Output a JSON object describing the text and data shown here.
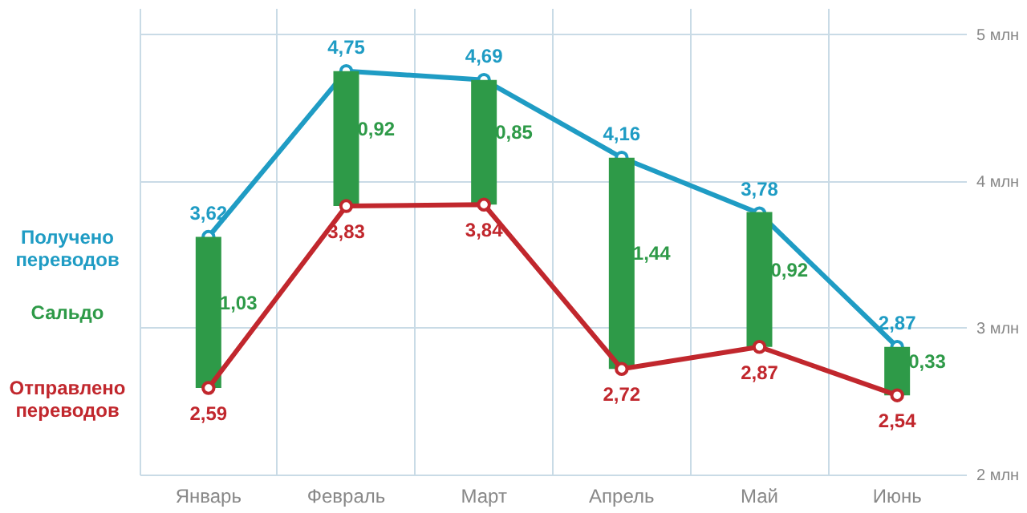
{
  "chart_data": {
    "type": "line",
    "categories": [
      "Январь",
      "Февраль",
      "Март",
      "Апрель",
      "Май",
      "Июнь"
    ],
    "series": [
      {
        "name": "Получено переводов",
        "color": "#1f9cc4",
        "values": [
          3.62,
          4.75,
          4.69,
          4.16,
          3.78,
          2.87
        ],
        "value_labels": [
          "3,62",
          "4,75",
          "4,69",
          "4,16",
          "3,78",
          "2,87"
        ]
      },
      {
        "name": "Сальдо",
        "type": "bar",
        "color": "#2e9a48",
        "base": [
          2.59,
          3.83,
          3.84,
          2.72,
          2.87,
          2.54
        ],
        "values": [
          1.03,
          0.92,
          0.85,
          1.44,
          0.92,
          0.33
        ],
        "value_labels": [
          "1,03",
          "0,92",
          "0,85",
          "1,44",
          "0,92",
          "0,33"
        ]
      },
      {
        "name": "Отправлено переводов",
        "color": "#c1272d",
        "values": [
          2.59,
          3.83,
          3.84,
          2.72,
          2.87,
          2.54
        ],
        "value_labels": [
          "2,59",
          "3,83",
          "3,84",
          "2,72",
          "2,87",
          "2,54"
        ]
      }
    ],
    "ylim": [
      2,
      5.18
    ],
    "yticks": [
      {
        "value": 2,
        "label": "2 млн"
      },
      {
        "value": 3,
        "label": "3 млн"
      },
      {
        "value": 4,
        "label": "4 млн"
      },
      {
        "value": 5,
        "label": "5 млн"
      }
    ],
    "grid": true,
    "legend": "left",
    "marker": "circle",
    "line_style": "solid"
  }
}
